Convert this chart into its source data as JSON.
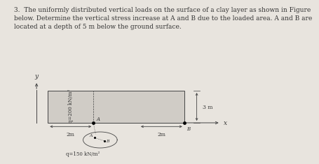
{
  "title_text": "3.  The uniformly distributed vertical loads on the surface of a clay layer as shown in Figure\nbelow. Determine the vertical stress increase at A and B due to the loaded area. A and B are\nlocated at a depth of 5 m below the ground surface.",
  "title_fontsize": 6.5,
  "background_color": "#e8e4de",
  "rect_fill_color": "#d0ccc6",
  "line_color": "#444444",
  "text_color": "#333333",
  "q200_label": "q=200 kN/m²",
  "q150_label": "q=150 kN/m²",
  "dim_left_label": "2m",
  "dim_right_label": "2m",
  "dim_3m_label": "3 m",
  "point_A_label": "A",
  "point_B_label": "B",
  "axis_x_label": "x",
  "axis_y_label": "y"
}
